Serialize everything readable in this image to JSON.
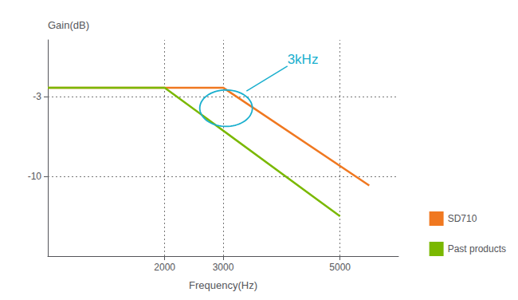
{
  "chart_data": {
    "type": "line",
    "xlabel": "Frequency(Hz)",
    "ylabel": "Gain(dB)",
    "series": [
      {
        "name": "SD710",
        "color": "#f07820",
        "x": [
          0,
          3000,
          5500
        ],
        "values": [
          -2.2,
          -2.2,
          -10.8
        ]
      },
      {
        "name": "Past products",
        "color": "#7ab800",
        "x": [
          0,
          2000,
          5000
        ],
        "values": [
          -2.2,
          -2.2,
          -13.5
        ]
      }
    ],
    "xlim": [
      0,
      6000
    ],
    "ylim": [
      -17,
      2
    ],
    "xticks": [
      2000,
      3000,
      5000
    ],
    "yticks": [
      -3,
      -10
    ],
    "grid": true,
    "legend": "lower right",
    "annotations": [
      {
        "text": "3kHz",
        "x": 4100,
        "y": -0.3,
        "xy": [
          3400,
          -2.5
        ],
        "color": "#1aafce"
      }
    ],
    "ellipse": {
      "x": 3050,
      "y": -4.0,
      "width": 900,
      "height": 3.2,
      "color": "#1aafce"
    }
  }
}
